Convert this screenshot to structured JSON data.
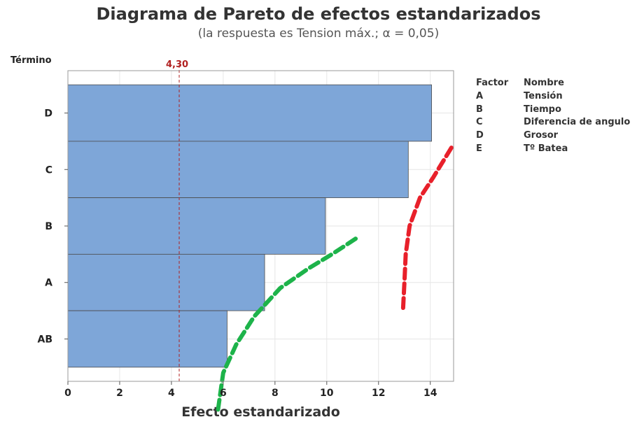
{
  "chart_data": {
    "type": "bar",
    "orientation": "horizontal",
    "title": "Diagrama de Pareto de efectos estandarizados",
    "subtitle": "(la respuesta es Tension máx.; α = 0,05)",
    "xlabel": "Efecto estandarizado",
    "ylabel": "Término",
    "xlim": [
      0,
      14.9
    ],
    "x_ticks": [
      "0",
      "2",
      "4",
      "6",
      "8",
      "10",
      "12",
      "14"
    ],
    "x_tick_values": [
      0,
      2,
      4,
      6,
      8,
      10,
      12,
      14
    ],
    "grid": true,
    "bar_color": "#7ea6d8",
    "categories": [
      "D",
      "C",
      "B",
      "A",
      "AB"
    ],
    "values": [
      14.05,
      13.15,
      9.95,
      7.6,
      6.15
    ],
    "reference_line": {
      "value": 4.3,
      "label": "4,30",
      "color": "#b22222"
    },
    "annotations": {
      "red_dashed_curve": {
        "color": "#e8202a",
        "points": [
          [
            12.95,
            3.45
          ],
          [
            13.0,
            3.0
          ],
          [
            13.05,
            2.5
          ],
          [
            13.2,
            2.0
          ],
          [
            13.6,
            1.5
          ],
          [
            14.1,
            1.15
          ],
          [
            14.9,
            0.55
          ]
        ]
      },
      "green_dashed_curve": {
        "color": "#1db34a",
        "points": [
          [
            5.8,
            5.25
          ],
          [
            6.0,
            4.6
          ],
          [
            6.5,
            4.1
          ],
          [
            7.2,
            3.6
          ],
          [
            8.2,
            3.1
          ],
          [
            9.3,
            2.75
          ],
          [
            10.2,
            2.5
          ],
          [
            11.2,
            2.2
          ]
        ]
      }
    }
  },
  "legend": {
    "header": {
      "factor": "Factor",
      "nombre": "Nombre"
    },
    "items": [
      {
        "factor": "A",
        "nombre": "Tensión"
      },
      {
        "factor": "B",
        "nombre": "Tiempo"
      },
      {
        "factor": "C",
        "nombre": "Diferencia de angulo"
      },
      {
        "factor": "D",
        "nombre": "Grosor"
      },
      {
        "factor": "E",
        "nombre": "Tº Batea"
      }
    ]
  }
}
